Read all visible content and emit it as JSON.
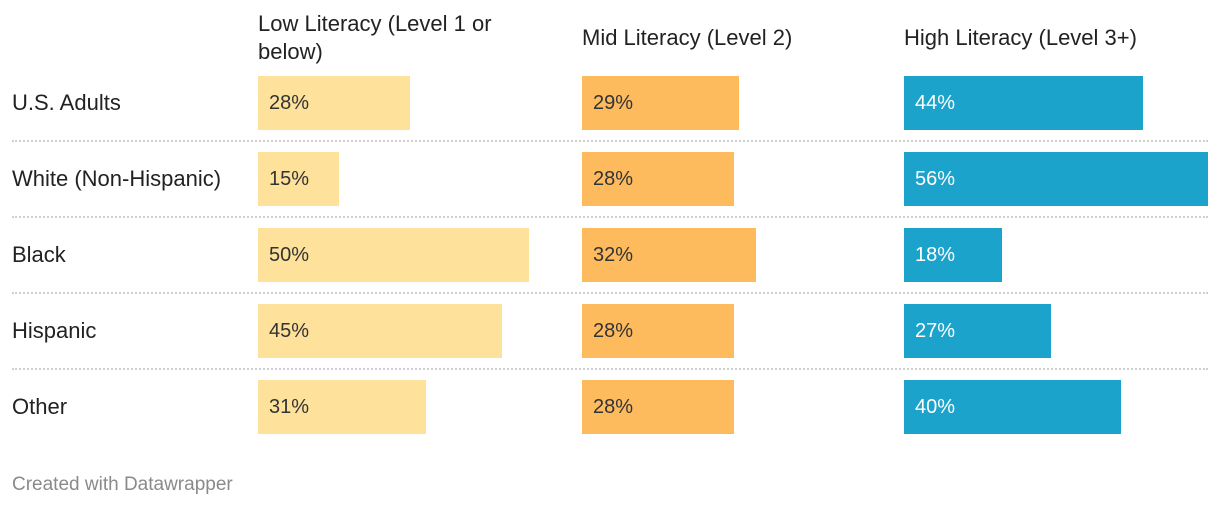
{
  "chart_data": {
    "type": "bar",
    "categories": [
      "U.S. Adults",
      "White (Non-Hispanic)",
      "Black",
      "Hispanic",
      "Other"
    ],
    "series": [
      {
        "name": "Low Literacy (Level 1 or below)",
        "values": [
          28,
          15,
          50,
          45,
          31
        ],
        "labels": [
          "28%",
          "15%",
          "50%",
          "45%",
          "31%"
        ],
        "color": "#FEE29B",
        "text_color": "#333333"
      },
      {
        "name": "Mid Literacy (Level 2)",
        "values": [
          29,
          28,
          32,
          28,
          28
        ],
        "labels": [
          "29%",
          "28%",
          "32%",
          "28%",
          "28%"
        ],
        "color": "#FDBB5E",
        "text_color": "#333333"
      },
      {
        "name": "High Literacy (Level 3+)",
        "values": [
          44,
          56,
          18,
          27,
          40
        ],
        "labels": [
          "44%",
          "56%",
          "18%",
          "27%",
          "40%"
        ],
        "color": "#1BA3CC",
        "text_color": "#ffffff"
      }
    ],
    "xlim": [
      0,
      56
    ],
    "unit": "%",
    "grid": false,
    "legend": "column headers at top"
  },
  "footer": {
    "credit": "Created with Datawrapper"
  }
}
